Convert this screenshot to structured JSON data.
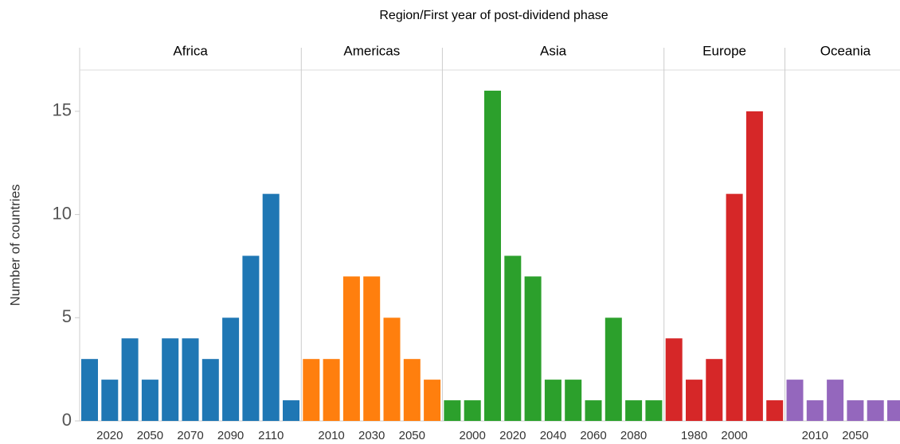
{
  "chart_data": {
    "type": "bar",
    "title": "Region/First year of post-dividend phase",
    "y_label": "Number of countries",
    "ylim": [
      0,
      17
    ],
    "yticks": [
      0,
      5,
      10,
      15
    ],
    "panels": [
      {
        "name": "Africa",
        "color": "#1f77b4",
        "categories": [
          null,
          "2020",
          null,
          "2050",
          null,
          "2070",
          null,
          "2090",
          null,
          "2110",
          null
        ],
        "values": [
          3,
          2,
          4,
          2,
          4,
          4,
          3,
          5,
          8,
          11,
          1
        ]
      },
      {
        "name": "Americas",
        "color": "#ff7f0e",
        "categories": [
          null,
          "2010",
          null,
          "2030",
          null,
          "2050",
          null
        ],
        "values": [
          3,
          3,
          7,
          7,
          5,
          3,
          2
        ]
      },
      {
        "name": "Asia",
        "color": "#2ca02c",
        "categories": [
          null,
          "2000",
          null,
          "2020",
          null,
          "2040",
          null,
          "2060",
          null,
          "2080",
          null
        ],
        "values": [
          1,
          1,
          16,
          8,
          7,
          2,
          2,
          1,
          5,
          1,
          1
        ]
      },
      {
        "name": "Europe",
        "color": "#d62728",
        "categories": [
          null,
          "1980",
          null,
          "2000",
          null,
          null
        ],
        "values": [
          4,
          2,
          3,
          11,
          15,
          1
        ]
      },
      {
        "name": "Oceania",
        "color": "#9467bd",
        "categories": [
          null,
          "2010",
          null,
          "2050",
          null,
          null
        ],
        "values": [
          2,
          1,
          2,
          1,
          1,
          1
        ]
      }
    ]
  }
}
